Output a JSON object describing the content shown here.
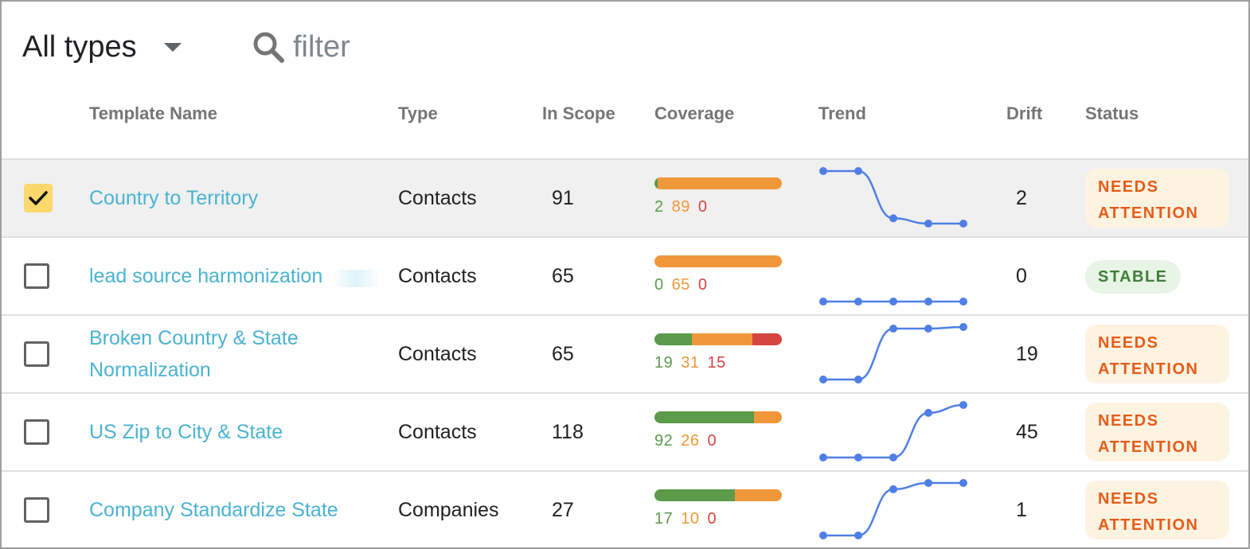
{
  "toolbar": {
    "type_filter_label": "All types",
    "search_placeholder": "filter"
  },
  "table": {
    "headers": {
      "name": "Template Name",
      "type": "Type",
      "in_scope": "In Scope",
      "coverage": "Coverage",
      "trend": "Trend",
      "drift": "Drift",
      "status": "Status"
    },
    "rows": [
      {
        "name": "Country to Territory",
        "type": "Contacts",
        "in_scope": "91",
        "coverage": {
          "green": 2,
          "orange": 89,
          "red": 0
        },
        "coverage_text": {
          "green": "2",
          "orange": "89",
          "red": "0"
        },
        "trend": [
          1,
          1,
          0.1,
          0,
          0
        ],
        "drift": "2",
        "status": "NEEDS ATTENTION",
        "status_kind": "attention",
        "selected": true
      },
      {
        "name": "lead source harmonization",
        "type": "Contacts",
        "in_scope": "65",
        "coverage": {
          "green": 0,
          "orange": 65,
          "red": 0
        },
        "coverage_text": {
          "green": "0",
          "orange": "65",
          "red": "0"
        },
        "trend": [
          0,
          0,
          0,
          0,
          0
        ],
        "drift": "0",
        "status": "STABLE",
        "status_kind": "stable",
        "selected": false
      },
      {
        "name": "Broken Country & State Normalization",
        "type": "Contacts",
        "in_scope": "65",
        "coverage": {
          "green": 19,
          "orange": 31,
          "red": 15
        },
        "coverage_text": {
          "green": "19",
          "orange": "31",
          "red": "15"
        },
        "trend": [
          0,
          0,
          0.97,
          0.97,
          1
        ],
        "drift": "19",
        "status": "NEEDS ATTENTION",
        "status_kind": "attention",
        "selected": false
      },
      {
        "name": "US Zip to City & State",
        "type": "Contacts",
        "in_scope": "118",
        "coverage": {
          "green": 92,
          "orange": 26,
          "red": 0
        },
        "coverage_text": {
          "green": "92",
          "orange": "26",
          "red": "0"
        },
        "trend": [
          0,
          0,
          0,
          0.85,
          1
        ],
        "drift": "45",
        "status": "NEEDS ATTENTION",
        "status_kind": "attention",
        "selected": false
      },
      {
        "name": "Company Standardize State",
        "type": "Companies",
        "in_scope": "27",
        "coverage": {
          "green": 17,
          "orange": 10,
          "red": 0
        },
        "coverage_text": {
          "green": "17",
          "orange": "10",
          "red": "0"
        },
        "trend": [
          0,
          0,
          0.88,
          1,
          1
        ],
        "drift": "1",
        "status": "NEEDS ATTENTION",
        "status_kind": "attention",
        "selected": false
      }
    ]
  },
  "colors": {
    "link": "#4ab3d1",
    "coverage_green": "#5b9b4a",
    "coverage_orange": "#f0973a",
    "coverage_red": "#d64541",
    "trend_line": "#4f7fe6",
    "attention_bg": "#fdf3e1",
    "attention_text": "#e65c1a",
    "stable_bg": "#e8f4e6",
    "stable_text": "#3f7f37",
    "checkbox_checked": "#fbd86b"
  }
}
